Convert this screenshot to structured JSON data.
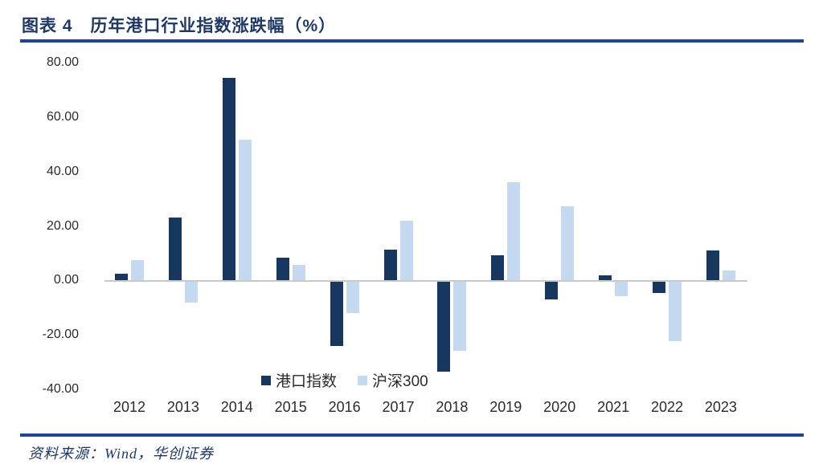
{
  "header": {
    "figure_label": "图表 4",
    "figure_title": "历年港口行业指数涨跌幅（%）"
  },
  "chart_data": {
    "type": "bar",
    "title": "历年港口行业指数涨跌幅（%）",
    "categories": [
      "2012",
      "2013",
      "2014",
      "2015",
      "2016",
      "2017",
      "2018",
      "2019",
      "2020",
      "2021",
      "2022",
      "2023"
    ],
    "series": [
      {
        "name": "港口指数",
        "color": "#17375E",
        "values": [
          2.5,
          23.0,
          74.5,
          8.5,
          -23.5,
          11.3,
          -33.0,
          9.2,
          -6.5,
          2.0,
          -4.0,
          11.0
        ]
      },
      {
        "name": "沪深300",
        "color": "#C5D9F1",
        "values": [
          7.6,
          -7.7,
          51.7,
          5.6,
          -11.3,
          21.8,
          -25.3,
          36.1,
          27.2,
          -5.2,
          -21.6,
          3.5
        ]
      }
    ],
    "xlabel": "",
    "ylabel": "",
    "ylim": [
      -40,
      80
    ],
    "ytick_step": 20,
    "ytick_labels": [
      "80.00",
      "60.00",
      "40.00",
      "20.00",
      "0.00",
      "-20.00",
      "-40.00"
    ],
    "grid": false,
    "legend_position": "inside-bottom-center",
    "zero_line_color": "#C9C9C9"
  },
  "footer": {
    "source_text": "资料来源：Wind，华创证券"
  },
  "colors": {
    "title_navy": "#1F3864",
    "rule_navy": "#1D4596",
    "series1": "#17375E",
    "series2": "#C5D9F1",
    "axis_text": "#2b2b2b"
  }
}
